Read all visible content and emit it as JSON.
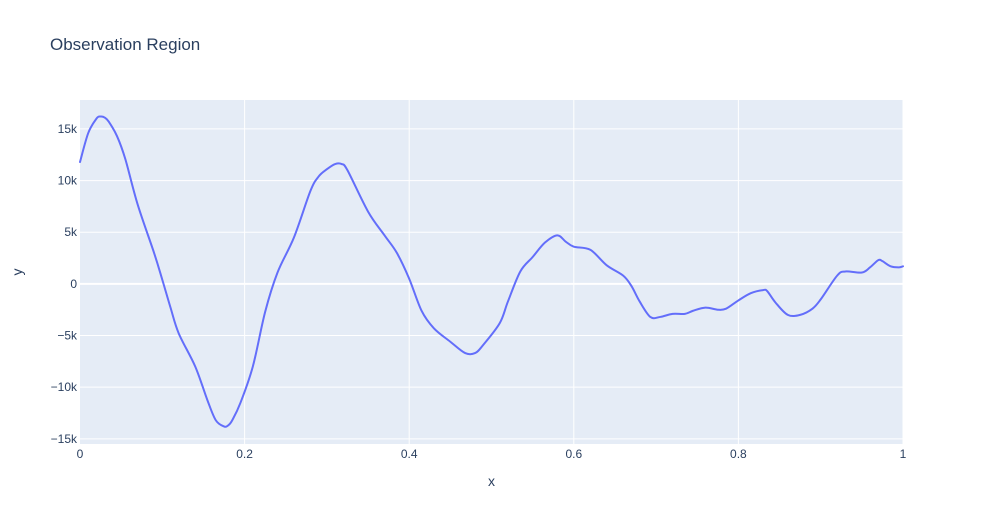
{
  "chart_data": {
    "type": "line",
    "title": "Observation Region",
    "xlabel": "x",
    "ylabel": "y",
    "xlim": [
      0,
      1
    ],
    "ylim": [
      -15500,
      17800
    ],
    "grid": true,
    "x_ticks": [
      {
        "value": 0,
        "label": "0"
      },
      {
        "value": 0.2,
        "label": "0.2"
      },
      {
        "value": 0.4,
        "label": "0.4"
      },
      {
        "value": 0.6,
        "label": "0.6"
      },
      {
        "value": 0.8,
        "label": "0.8"
      },
      {
        "value": 1,
        "label": "1"
      }
    ],
    "y_ticks": [
      {
        "value": 15000,
        "label": "15k"
      },
      {
        "value": 10000,
        "label": "10k"
      },
      {
        "value": 5000,
        "label": "5k"
      },
      {
        "value": 0,
        "label": "0"
      },
      {
        "value": -5000,
        "label": "−5k"
      },
      {
        "value": -10000,
        "label": "−10k"
      },
      {
        "value": -15000,
        "label": "−15k"
      }
    ],
    "series": [
      {
        "color": "#636efa",
        "x": [
          0,
          0.01,
          0.02,
          0.025,
          0.03,
          0.035,
          0.045,
          0.055,
          0.07,
          0.09,
          0.1,
          0.11,
          0.12,
          0.14,
          0.155,
          0.165,
          0.175,
          0.18,
          0.185,
          0.195,
          0.21,
          0.225,
          0.24,
          0.26,
          0.28,
          0.29,
          0.3,
          0.31,
          0.318,
          0.325,
          0.35,
          0.37,
          0.385,
          0.4,
          0.415,
          0.43,
          0.45,
          0.468,
          0.48,
          0.49,
          0.51,
          0.52,
          0.535,
          0.55,
          0.565,
          0.58,
          0.59,
          0.6,
          0.62,
          0.64,
          0.66,
          0.67,
          0.68,
          0.693,
          0.705,
          0.72,
          0.735,
          0.745,
          0.76,
          0.775,
          0.785,
          0.8,
          0.815,
          0.83,
          0.835,
          0.845,
          0.86,
          0.875,
          0.89,
          0.9,
          0.92,
          0.93,
          0.95,
          0.96,
          0.97,
          0.975,
          0.985,
          0.995,
          1.0
        ],
        "y": [
          11800,
          14600,
          16000,
          16200,
          16100,
          15700,
          14300,
          12100,
          7700,
          3000,
          400,
          -2300,
          -4800,
          -8000,
          -11300,
          -13200,
          -13800,
          -13700,
          -13200,
          -11500,
          -8000,
          -2700,
          1100,
          4500,
          9000,
          10400,
          11100,
          11600,
          11600,
          11000,
          7000,
          4700,
          3000,
          500,
          -2600,
          -4300,
          -5600,
          -6700,
          -6700,
          -5900,
          -3800,
          -1700,
          1200,
          2600,
          4000,
          4700,
          4100,
          3600,
          3300,
          1800,
          800,
          -200,
          -1700,
          -3200,
          -3200,
          -2900,
          -2900,
          -2600,
          -2300,
          -2500,
          -2400,
          -1600,
          -900,
          -600,
          -700,
          -1800,
          -3000,
          -3000,
          -2400,
          -1500,
          800,
          1200,
          1100,
          1600,
          2300,
          2200,
          1700,
          1600,
          1700
        ]
      }
    ]
  }
}
